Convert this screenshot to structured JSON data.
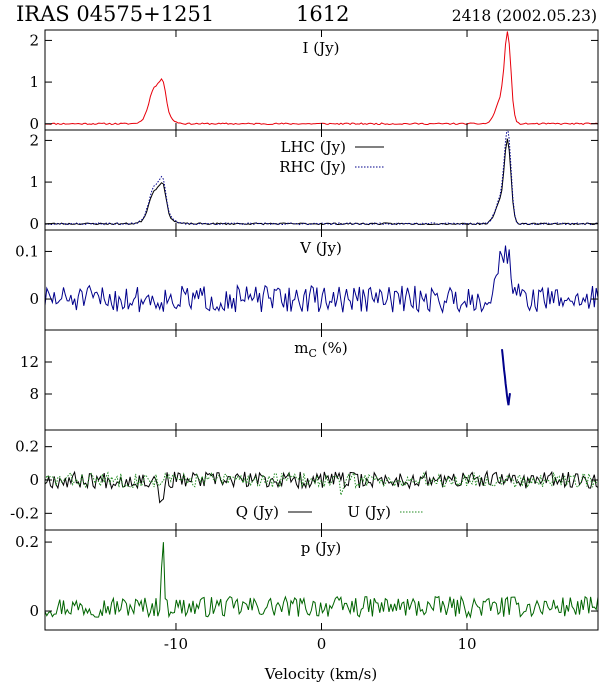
{
  "header": {
    "source": "IRAS 04575+1251",
    "frequency": "1612",
    "epoch": "2418 (2002.05.23)"
  },
  "chart_data": {
    "type": "line",
    "xlabel": "Velocity (km/s)",
    "xlim": [
      -19,
      19
    ],
    "xticks": [
      -10,
      0,
      10
    ],
    "xtick_labels": [
      "-10",
      "0",
      "10"
    ],
    "grid": false,
    "panels": [
      {
        "id": "I",
        "label": "I (Jy)",
        "ylim": [
          -0.15,
          2.25
        ],
        "yticks": [
          0,
          1,
          2
        ],
        "ytick_labels": [
          "0",
          "1",
          "2"
        ],
        "series": [
          {
            "name": "I (Jy)",
            "color": "#e8000b",
            "dash": "",
            "model": "intensity",
            "scale": 1.0,
            "noise": 0.018,
            "seed": 11
          }
        ]
      },
      {
        "id": "LR",
        "label": "",
        "ylim": [
          -0.15,
          2.25
        ],
        "yticks": [
          0,
          1,
          2
        ],
        "ytick_labels": [
          "0",
          "1",
          "2"
        ],
        "series": [
          {
            "name": "LHC (Jy)",
            "color": "#000000",
            "dash": "",
            "model": "intensity",
            "scale": 0.92,
            "noise": 0.02,
            "seed": 23
          },
          {
            "name": "RHC (Jy)",
            "color": "#00008b",
            "dash": "1.5,1.5",
            "model": "intensity",
            "scale": 1.05,
            "noise": 0.02,
            "seed": 37
          }
        ],
        "legend": [
          {
            "text": "LHC (Jy)",
            "color": "#000000",
            "dash": ""
          },
          {
            "text": "RHC (Jy)",
            "color": "#00008b",
            "dash": "1.5,1.5"
          }
        ]
      },
      {
        "id": "V",
        "label": "V (Jy)",
        "ylim": [
          -0.065,
          0.145
        ],
        "yticks": [
          0,
          0.1
        ],
        "ytick_labels": [
          "0",
          "0.1"
        ],
        "series": [
          {
            "name": "V (Jy)",
            "color": "#00008b",
            "dash": "",
            "model": "vnoise",
            "scale": 1.0,
            "noise": 0.028,
            "seed": 51
          }
        ]
      },
      {
        "id": "mC",
        "label": "m",
        "label_sub": "C",
        "label_tail": " (%)",
        "ylim": [
          3.5,
          16
        ],
        "yticks": [
          8,
          12
        ],
        "ytick_labels": [
          "8",
          "12"
        ],
        "series": [
          {
            "name": "mC (%)",
            "color": "#00008b",
            "dash": "",
            "model": "mc",
            "scale": 1.0,
            "noise": 0.0,
            "seed": 0
          }
        ]
      },
      {
        "id": "QU",
        "label": "",
        "ylim": [
          -0.3,
          0.3
        ],
        "yticks": [
          -0.2,
          0,
          0.2
        ],
        "ytick_labels": [
          "-0.2",
          "0",
          "0.2"
        ],
        "series": [
          {
            "name": "Q (Jy)",
            "color": "#000000",
            "dash": "",
            "model": "qnoise",
            "scale": 1.0,
            "noise": 0.05,
            "seed": 67
          },
          {
            "name": "U (Jy)",
            "color": "#228b22",
            "dash": "1.5,1.5",
            "model": "qnoise",
            "scale": 1.0,
            "noise": 0.045,
            "seed": 83
          }
        ],
        "legend": [
          {
            "text": "Q (Jy)",
            "color": "#000000",
            "dash": ""
          },
          {
            "text": "U (Jy)",
            "color": "#228b22",
            "dash": "1.5,1.5"
          }
        ]
      },
      {
        "id": "p",
        "label": "p (Jy)",
        "ylim": [
          -0.055,
          0.235
        ],
        "yticks": [
          0,
          0.2
        ],
        "ytick_labels": [
          "0",
          "0.2"
        ],
        "series": [
          {
            "name": "p (Jy)",
            "color": "#006400",
            "dash": "",
            "model": "pnoise",
            "scale": 1.0,
            "noise": 0.03,
            "seed": 97
          }
        ]
      }
    ]
  }
}
